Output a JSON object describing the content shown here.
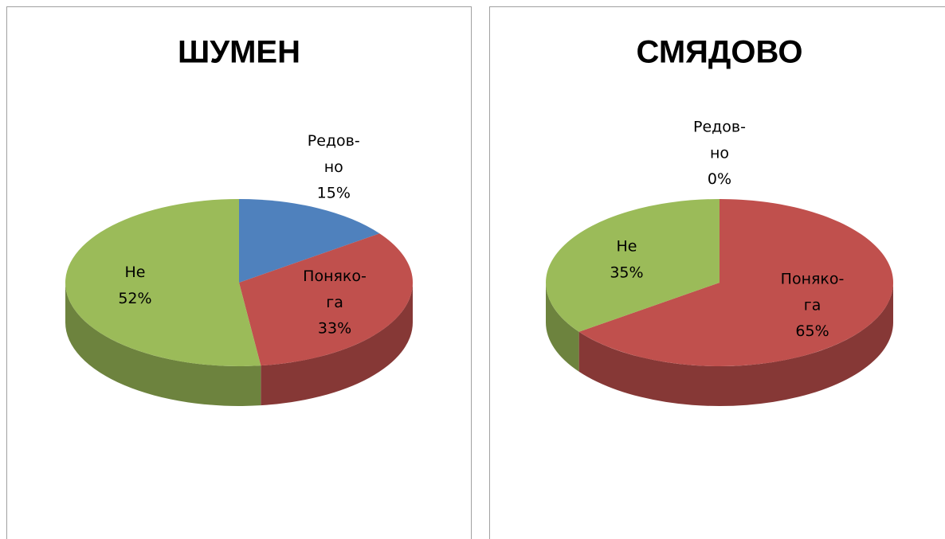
{
  "chart_data": [
    {
      "type": "pie3d",
      "title": "ШУМЕН",
      "categories": [
        "Редов-но",
        "Поняко-га",
        "Не"
      ],
      "values": [
        15,
        33,
        52
      ],
      "value_labels": [
        "15%",
        "33%",
        "52%"
      ],
      "colors": [
        "#4f81bd",
        "#c0504d",
        "#9bbb59"
      ]
    },
    {
      "type": "pie3d",
      "title": "СМЯДОВО",
      "categories": [
        "Редов-но",
        "Поняко-га",
        "Не"
      ],
      "values": [
        0,
        65,
        35
      ],
      "value_labels": [
        "0%",
        "65%",
        "35%"
      ],
      "colors": [
        "#4f81bd",
        "#c0504d",
        "#9bbb59"
      ]
    }
  ]
}
